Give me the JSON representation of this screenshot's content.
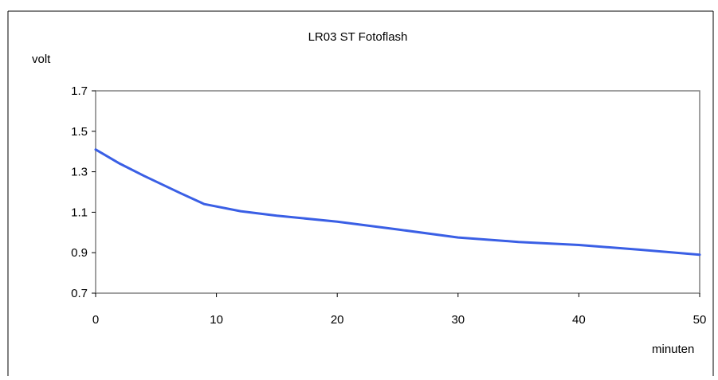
{
  "chart_data": {
    "type": "line",
    "title": "LR03 ST Fotoflash",
    "xlabel": "minuten",
    "ylabel": "volt",
    "xlim": [
      0,
      50
    ],
    "ylim": [
      0.7,
      1.7
    ],
    "x_ticks": [
      "0",
      "10",
      "20",
      "30",
      "40",
      "50"
    ],
    "y_ticks": [
      "0.7",
      "0.9",
      "1.1",
      "1.3",
      "1.5",
      "1.7"
    ],
    "grid": false,
    "legend": "none",
    "series": [
      {
        "color": "#3a5fe5",
        "x": [
          0,
          2,
          4,
          7,
          9,
          12,
          15,
          20,
          25,
          30,
          35,
          40,
          45,
          50
        ],
        "y": [
          1.41,
          1.34,
          1.28,
          1.195,
          1.14,
          1.105,
          1.083,
          1.053,
          1.015,
          0.975,
          0.953,
          0.938,
          0.915,
          0.89
        ]
      }
    ]
  }
}
